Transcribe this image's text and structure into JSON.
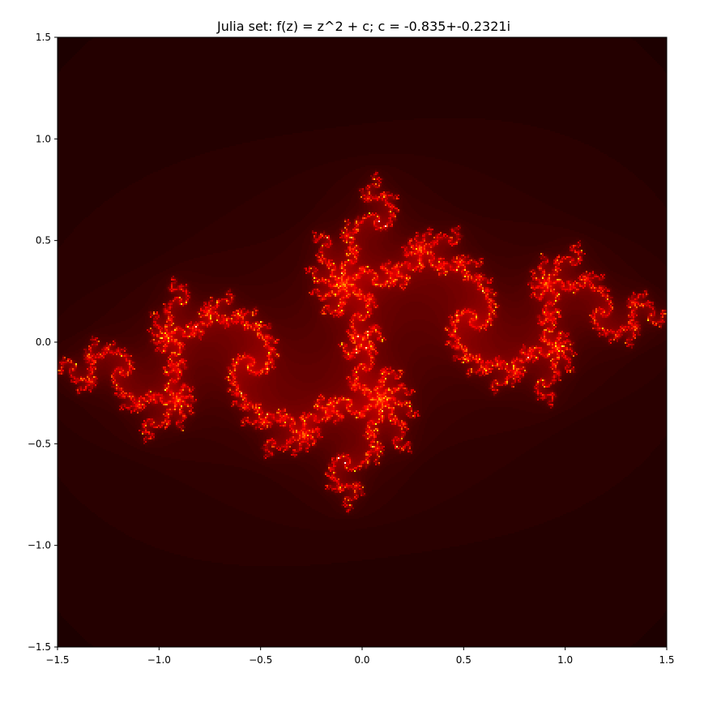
{
  "chart_data": {
    "type": "heatmap",
    "title": "Julia set: f(z) = z^2 + c; c = -0.835+-0.2321i",
    "xlabel": "",
    "ylabel": "",
    "c": {
      "re": -0.835,
      "im": -0.2321
    },
    "xlim": [
      -1.5,
      1.5
    ],
    "ylim": [
      -1.5,
      1.5
    ],
    "xticks": [
      -1.5,
      -1.0,
      -0.5,
      0.0,
      0.5,
      1.0,
      1.5
    ],
    "yticks": [
      -1.5,
      -1.0,
      -0.5,
      0.0,
      0.5,
      1.0,
      1.5
    ],
    "xtick_labels": [
      "−1.5",
      "−1.0",
      "−0.5",
      "0.0",
      "0.5",
      "1.0",
      "1.5"
    ],
    "ytick_labels": [
      "−1.5",
      "−1.0",
      "−0.5",
      "0.0",
      "0.5",
      "1.0",
      "1.5"
    ],
    "colormap": "hot",
    "grid": false,
    "legend": "none"
  }
}
